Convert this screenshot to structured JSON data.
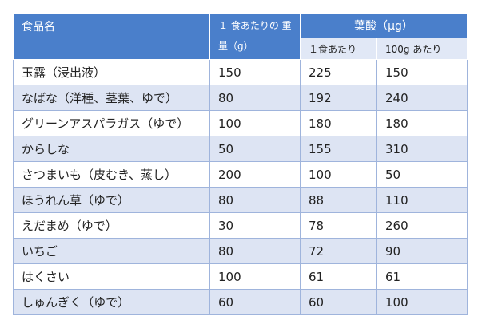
{
  "header": {
    "food_name": "食品名",
    "weight": "１ 食あたりの 重量（g）",
    "folate": "葉酸（μg）",
    "per_serving": "１食あたり",
    "per_100g": "100g あたり"
  },
  "rows": [
    {
      "name": "玉露（浸出液）",
      "weight": "150",
      "per_serving": "225",
      "per_100g": "150"
    },
    {
      "name": "なばな（洋種、茎葉、ゆで）",
      "weight": "80",
      "per_serving": "192",
      "per_100g": "240"
    },
    {
      "name": "グリーンアスパラガス（ゆで）",
      "weight": "100",
      "per_serving": "180",
      "per_100g": "180"
    },
    {
      "name": "からしな",
      "weight": "50",
      "per_serving": "155",
      "per_100g": "310"
    },
    {
      "name": "さつまいも（皮むき、蒸し）",
      "weight": "200",
      "per_serving": "100",
      "per_100g": "50"
    },
    {
      "name": "ほうれん草（ゆで）",
      "weight": "80",
      "per_serving": "88",
      "per_100g": "110"
    },
    {
      "name": "えだまめ（ゆで）",
      "weight": "30",
      "per_serving": "78",
      "per_100g": "260"
    },
    {
      "name": "いちご",
      "weight": "80",
      "per_serving": "72",
      "per_100g": "90"
    },
    {
      "name": "はくさい",
      "weight": "100",
      "per_serving": "61",
      "per_100g": "61"
    },
    {
      "name": "しゅんぎく（ゆで）",
      "weight": "60",
      "per_serving": "60",
      "per_100g": "100"
    }
  ],
  "colors": {
    "header_bg": "#4a7fcb",
    "subheader_bg": "#e1e8f6",
    "row_shade": "#dde4f3",
    "row_light": "#ffffff"
  }
}
